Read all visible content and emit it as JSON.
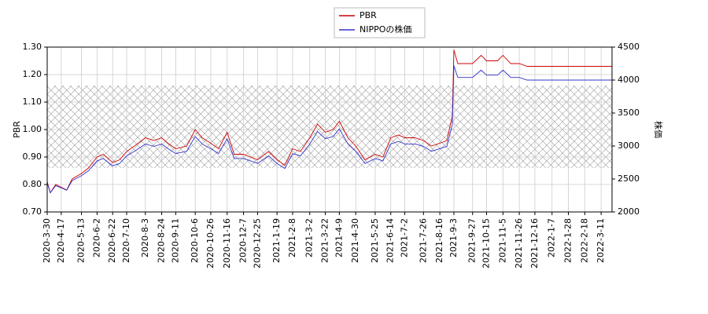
{
  "chart_data": {
    "type": "line",
    "ylabel": "PBR",
    "y2label": "株価",
    "x": [
      "2020-03-30",
      "2020-04-03",
      "2020-04-10",
      "2020-04-17",
      "2020-04-24",
      "2020-05-01",
      "2020-05-13",
      "2020-05-22",
      "2020-06-02",
      "2020-06-10",
      "2020-06-22",
      "2020-07-01",
      "2020-07-10",
      "2020-07-20",
      "2020-08-03",
      "2020-08-14",
      "2020-08-24",
      "2020-09-01",
      "2020-09-11",
      "2020-09-25",
      "2020-10-06",
      "2020-10-15",
      "2020-10-26",
      "2020-11-05",
      "2020-11-16",
      "2020-11-25",
      "2020-12-07",
      "2020-12-16",
      "2020-12-25",
      "2021-01-08",
      "2021-01-19",
      "2021-01-29",
      "2021-02-08",
      "2021-02-18",
      "2021-03-02",
      "2021-03-12",
      "2021-03-22",
      "2021-04-01",
      "2021-04-09",
      "2021-04-20",
      "2021-04-30",
      "2021-05-12",
      "2021-05-25",
      "2021-06-04",
      "2021-06-14",
      "2021-06-24",
      "2021-07-02",
      "2021-07-15",
      "2021-07-26",
      "2021-08-05",
      "2021-08-16",
      "2021-08-25",
      "2021-09-01",
      "2021-09-03",
      "2021-09-08",
      "2021-09-27",
      "2021-10-08",
      "2021-10-15",
      "2021-10-29",
      "2021-11-05",
      "2021-11-15",
      "2021-11-26",
      "2021-12-06",
      "2021-12-16",
      "2022-01-07",
      "2022-02-18",
      "2022-03-25"
    ],
    "series": [
      {
        "name": "PBR",
        "color": "#cc0000",
        "axis": "y",
        "values": [
          0.81,
          0.77,
          0.8,
          0.79,
          0.78,
          0.82,
          0.84,
          0.86,
          0.9,
          0.91,
          0.88,
          0.89,
          0.92,
          0.94,
          0.97,
          0.96,
          0.97,
          0.95,
          0.93,
          0.94,
          1.0,
          0.97,
          0.95,
          0.93,
          0.99,
          0.91,
          0.91,
          0.9,
          0.89,
          0.92,
          0.89,
          0.87,
          0.93,
          0.92,
          0.97,
          1.02,
          0.99,
          1.0,
          1.03,
          0.97,
          0.94,
          0.89,
          0.91,
          0.9,
          0.97,
          0.98,
          0.97,
          0.97,
          0.96,
          0.94,
          0.95,
          0.96,
          1.05,
          1.29,
          1.24,
          1.24,
          1.27,
          1.25,
          1.25,
          1.27,
          1.24,
          1.24,
          1.23,
          1.23,
          1.23,
          1.23,
          1.23
        ]
      },
      {
        "name": "NIPPOの株価",
        "color": "#3333cc",
        "axis": "y2",
        "values": [
          2440,
          2290,
          2400,
          2365,
          2330,
          2475,
          2550,
          2625,
          2775,
          2810,
          2700,
          2735,
          2850,
          2920,
          3030,
          2995,
          3030,
          2960,
          2885,
          2920,
          3145,
          3030,
          2960,
          2885,
          3110,
          2810,
          2810,
          2775,
          2735,
          2850,
          2735,
          2660,
          2885,
          2850,
          3030,
          3220,
          3110,
          3145,
          3260,
          3030,
          2920,
          2735,
          2810,
          2775,
          3030,
          3070,
          3030,
          3030,
          2995,
          2920,
          2960,
          2995,
          3330,
          4220,
          4040,
          4040,
          4150,
          4075,
          4075,
          4150,
          4040,
          4040,
          4000,
          4000,
          4000,
          4000,
          4000
        ]
      }
    ],
    "shaded_range": [
      0.86,
      1.16
    ],
    "xlim": [
      "2020-03-30",
      "2022-03-25"
    ],
    "xticks": [
      {
        "value": "2020-03-30",
        "label": "2020-3-30"
      },
      {
        "value": "2020-04-17",
        "label": "2020-4-17"
      },
      {
        "value": "2020-05-13",
        "label": "2020-5-13"
      },
      {
        "value": "2020-06-02",
        "label": "2020-6-2"
      },
      {
        "value": "2020-06-22",
        "label": "2020-6-22"
      },
      {
        "value": "2020-07-10",
        "label": "2020-7-10"
      },
      {
        "value": "2020-08-03",
        "label": "2020-8-3"
      },
      {
        "value": "2020-08-24",
        "label": "2020-8-24"
      },
      {
        "value": "2020-09-11",
        "label": "2020-9-11"
      },
      {
        "value": "2020-10-06",
        "label": "2020-10-6"
      },
      {
        "value": "2020-10-26",
        "label": "2020-10-26"
      },
      {
        "value": "2020-11-16",
        "label": "2020-11-16"
      },
      {
        "value": "2020-12-07",
        "label": "2020-12-7"
      },
      {
        "value": "2020-12-25",
        "label": "2020-12-25"
      },
      {
        "value": "2021-01-19",
        "label": "2021-1-19"
      },
      {
        "value": "2021-02-08",
        "label": "2021-2-8"
      },
      {
        "value": "2021-03-02",
        "label": "2021-3-2"
      },
      {
        "value": "2021-03-22",
        "label": "2021-3-22"
      },
      {
        "value": "2021-04-09",
        "label": "2021-4-9"
      },
      {
        "value": "2021-04-30",
        "label": "2021-4-30"
      },
      {
        "value": "2021-05-25",
        "label": "2021-5-25"
      },
      {
        "value": "2021-06-14",
        "label": "2021-6-14"
      },
      {
        "value": "2021-07-02",
        "label": "2021-7-2"
      },
      {
        "value": "2021-07-26",
        "label": "2021-7-26"
      },
      {
        "value": "2021-08-16",
        "label": "2021-8-16"
      },
      {
        "value": "2021-09-03",
        "label": "2021-9-3"
      },
      {
        "value": "2021-09-27",
        "label": "2021-9-27"
      },
      {
        "value": "2021-10-15",
        "label": "2021-10-15"
      },
      {
        "value": "2021-11-05",
        "label": "2021-11-5"
      },
      {
        "value": "2021-11-26",
        "label": "2021-11-26"
      },
      {
        "value": "2021-12-16",
        "label": "2021-12-16"
      },
      {
        "value": "2022-01-07",
        "label": "2022-1-7"
      },
      {
        "value": "2022-01-28",
        "label": "2022-1-28"
      },
      {
        "value": "2022-02-18",
        "label": "2022-2-18"
      },
      {
        "value": "2022-03-11",
        "label": "2022-3-11"
      }
    ],
    "ylim": [
      0.7,
      1.3
    ],
    "yticks": [
      {
        "value": 0.7,
        "label": "0.70"
      },
      {
        "value": 0.8,
        "label": "0.80"
      },
      {
        "value": 0.9,
        "label": "0.90"
      },
      {
        "value": 1.0,
        "label": "1.00"
      },
      {
        "value": 1.1,
        "label": "1.10"
      },
      {
        "value": 1.2,
        "label": "1.20"
      },
      {
        "value": 1.3,
        "label": "1.30"
      }
    ],
    "y2lim": [
      2000,
      4500
    ],
    "y2ticks": [
      2000,
      2500,
      3000,
      3500,
      4000,
      4500
    ],
    "grid": true,
    "legend": "upper center"
  }
}
